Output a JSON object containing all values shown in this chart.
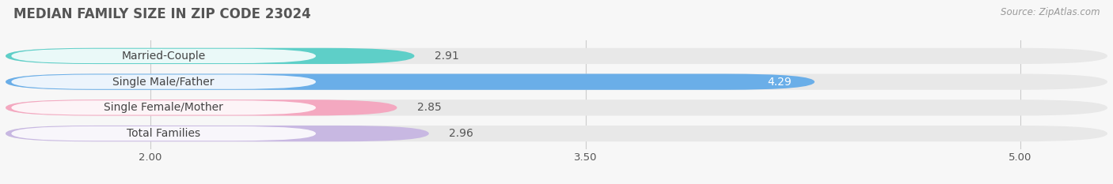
{
  "title": "MEDIAN FAMILY SIZE IN ZIP CODE 23024",
  "source_text": "Source: ZipAtlas.com",
  "categories": [
    "Married-Couple",
    "Single Male/Father",
    "Single Female/Mother",
    "Total Families"
  ],
  "values": [
    2.91,
    4.29,
    2.85,
    2.96
  ],
  "bar_colors": [
    "#5ecfc8",
    "#6aaee8",
    "#f4a8c0",
    "#c8b8e2"
  ],
  "track_color": "#e8e8e8",
  "xlim_data": [
    1.5,
    5.3
  ],
  "x_ticks": [
    2.0,
    3.5,
    5.0
  ],
  "x_tick_labels": [
    "2.00",
    "3.50",
    "5.00"
  ],
  "bar_height": 0.62,
  "label_fontsize": 10,
  "value_fontsize": 10,
  "title_fontsize": 12,
  "background_color": "#f7f7f7",
  "grid_color": "#cccccc",
  "label_bg_color": "#ffffff",
  "label_text_color": "#444444",
  "value_color_outside": "#555555",
  "value_color_inside": "#ffffff"
}
